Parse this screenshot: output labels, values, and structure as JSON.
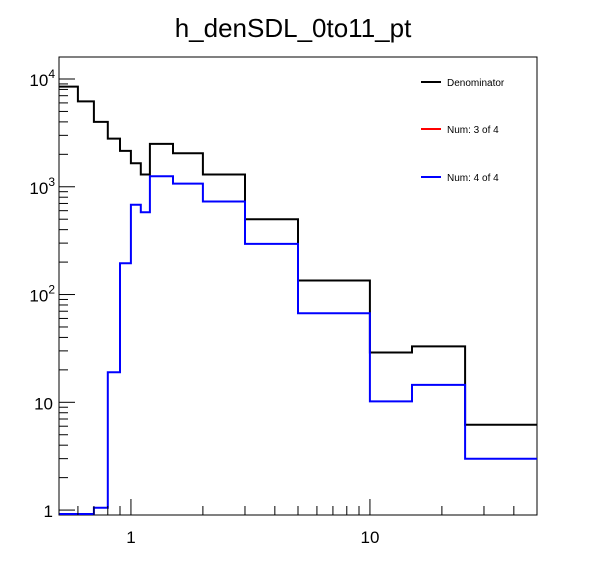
{
  "chart_data": {
    "type": "line",
    "step": true,
    "title": "h_denSDL_0to11_pt",
    "xlabel": "",
    "ylabel": "",
    "xscale": "log",
    "yscale": "log",
    "xlim": [
      0.5,
      50
    ],
    "ylim": [
      0.9,
      16000
    ],
    "x_ticks": [
      {
        "value": 1,
        "label": "1"
      },
      {
        "value": 10,
        "label": "10"
      }
    ],
    "y_ticks": [
      {
        "value": 1,
        "label": "1",
        "exp": ""
      },
      {
        "value": 10,
        "label": "10",
        "exp": ""
      },
      {
        "value": 100,
        "label": "10",
        "exp": "2"
      },
      {
        "value": 1000,
        "label": "10",
        "exp": "3"
      },
      {
        "value": 10000,
        "label": "10",
        "exp": "4"
      }
    ],
    "bin_edges": [
      0.5,
      0.6,
      0.7,
      0.8,
      0.9,
      1.0,
      1.1,
      1.2,
      1.5,
      2.0,
      3.0,
      5.0,
      10.0,
      15.0,
      25.0,
      50.0
    ],
    "series": [
      {
        "name": "Denominator",
        "color": "#000000",
        "values": [
          8500,
          6200,
          4000,
          2800,
          2150,
          1650,
          1300,
          2500,
          2050,
          1300,
          500,
          135,
          29,
          33,
          6.2
        ]
      },
      {
        "name": "Num: 3 of 4",
        "color": "#ff0000",
        "values": [
          0,
          0,
          0,
          0,
          0,
          0,
          0,
          0,
          0,
          0,
          0,
          0,
          0,
          0,
          0
        ]
      },
      {
        "name": "Num: 4 of 4",
        "color": "#0000ff",
        "values": [
          0.92,
          0.92,
          1.05,
          19,
          195,
          680,
          580,
          1250,
          1070,
          730,
          295,
          67,
          10.2,
          14.5,
          3.0
        ]
      }
    ],
    "legend_position": "top-right",
    "grid": false
  }
}
